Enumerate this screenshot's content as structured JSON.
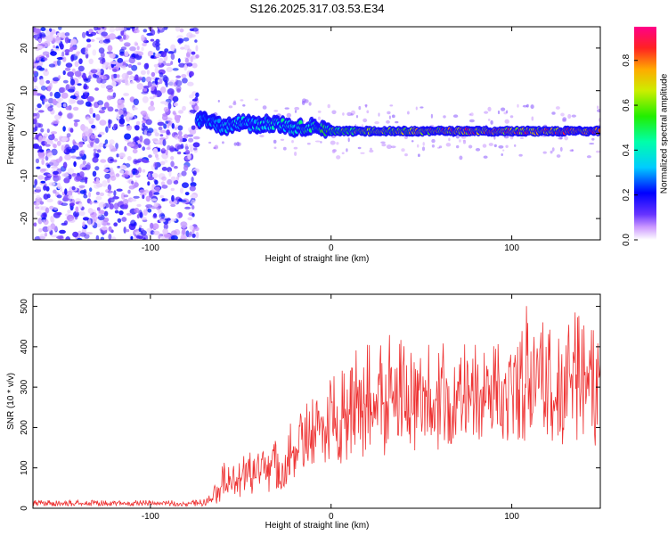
{
  "title": "S126.2025.317.03.53.E34",
  "chart_data": [
    {
      "type": "heatmap",
      "xlabel": "Height of straight line (km)",
      "ylabel": "Frequency (Hz)",
      "xlim": [
        -165,
        149
      ],
      "ylim": [
        -25,
        25
      ],
      "xticks": [
        -100,
        0,
        100
      ],
      "yticks": [
        -20,
        -10,
        0,
        10,
        20
      ],
      "noise_region_x": [
        -165,
        -74
      ],
      "ridge": {
        "x": [
          -74,
          -60,
          -50,
          -40,
          -30,
          -20,
          -10,
          0,
          20,
          40,
          60,
          80,
          100,
          120,
          140,
          149
        ],
        "freq": [
          3.5,
          1.5,
          2.5,
          2.0,
          2.5,
          1.0,
          2.0,
          0.5,
          0.5,
          0.5,
          0.5,
          0.5,
          0.5,
          0.5,
          0.5,
          0.5
        ],
        "amplitude": [
          0.35,
          0.35,
          0.4,
          0.4,
          0.45,
          0.45,
          0.5,
          0.6,
          0.7,
          0.75,
          0.8,
          0.85,
          0.85,
          0.85,
          0.85,
          0.85
        ]
      },
      "colorbar": {
        "label": "Normalized spectral amplitude",
        "range": [
          0.0,
          0.95
        ],
        "ticks": [
          "0.0",
          "0.2",
          "0.4",
          "0.6",
          "0.8"
        ]
      }
    },
    {
      "type": "line",
      "xlabel": "Height of straight line (km)",
      "ylabel": "SNR (10 * v/v)",
      "xlim": [
        -165,
        149
      ],
      "ylim": [
        0,
        530
      ],
      "xticks": [
        -100,
        0,
        100
      ],
      "yticks": [
        0,
        100,
        200,
        300,
        400,
        500
      ],
      "line_color": "#ee3333",
      "series": [
        {
          "name": "SNR",
          "x": [
            -165,
            -140,
            -120,
            -100,
            -80,
            -70,
            -66,
            -60,
            -55,
            -50,
            -40,
            -30,
            -20,
            -10,
            0,
            10,
            20,
            30,
            40,
            50,
            60,
            70,
            80,
            90,
            100,
            110,
            120,
            130,
            140,
            149
          ],
          "y_low": [
            5,
            5,
            5,
            5,
            5,
            5,
            8,
            10,
            15,
            20,
            25,
            40,
            60,
            80,
            100,
            110,
            120,
            130,
            140,
            140,
            140,
            150,
            150,
            150,
            150,
            150,
            150,
            150,
            150,
            150
          ],
          "y_high": [
            20,
            20,
            20,
            20,
            20,
            25,
            40,
            120,
            100,
            130,
            150,
            180,
            220,
            280,
            320,
            380,
            410,
            440,
            420,
            400,
            420,
            440,
            430,
            460,
            420,
            520,
            440,
            470,
            500,
            430
          ],
          "y_mean": [
            12,
            12,
            12,
            12,
            12,
            12,
            25,
            55,
            60,
            70,
            85,
            110,
            140,
            170,
            200,
            230,
            250,
            270,
            265,
            260,
            270,
            285,
            280,
            290,
            275,
            300,
            285,
            295,
            300,
            285
          ]
        }
      ]
    }
  ]
}
